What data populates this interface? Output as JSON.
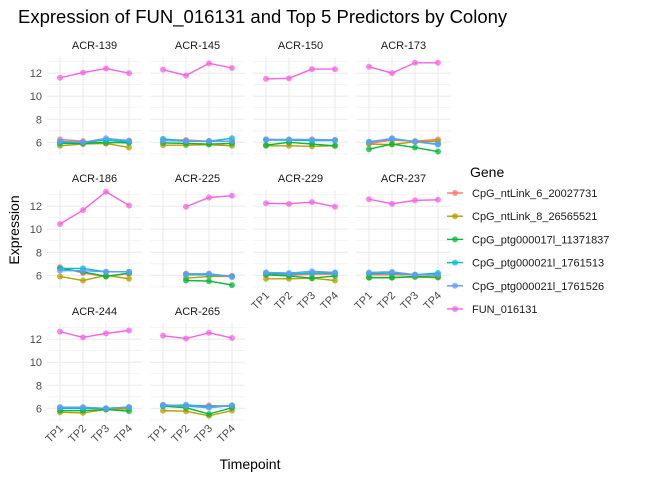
{
  "chart_data": {
    "type": "line",
    "title": "Expression of FUN_016131 and Top 5 Predictors by Colony",
    "xlabel": "Timepoint",
    "ylabel": "Expression",
    "x": [
      "TP1",
      "TP2",
      "TP3",
      "TP4"
    ],
    "ylim": [
      4.9,
      13.4
    ],
    "yticks": [
      6,
      8,
      10,
      12
    ],
    "grid": true,
    "legend": {
      "title": "Gene",
      "position": "right"
    },
    "series_meta": [
      {
        "name": "CpG_ntLink_6_20027731",
        "color": "#F8766D"
      },
      {
        "name": "CpG_ntLink_8_26565521",
        "color": "#B79F00"
      },
      {
        "name": "CpG_ptg000017l_11371837",
        "color": "#00BA38"
      },
      {
        "name": "CpG_ptg000021l_1761513",
        "color": "#00BFC4"
      },
      {
        "name": "CpG_ptg000021l_1761526",
        "color": "#619CFF"
      },
      {
        "name": "FUN_016131",
        "color": "#F564E3"
      }
    ],
    "facets": [
      {
        "label": "ACR-139",
        "values": [
          [
            6.25,
            6.1,
            5.9,
            6.1
          ],
          [
            5.7,
            5.85,
            5.9,
            5.55
          ],
          [
            5.9,
            5.9,
            6.0,
            5.95
          ],
          [
            6.0,
            6.0,
            6.2,
            6.05
          ],
          [
            6.1,
            6.0,
            6.35,
            6.15
          ],
          [
            11.6,
            12.05,
            12.4,
            12.0
          ]
        ]
      },
      {
        "label": "ACR-145",
        "values": [
          [
            6.2,
            6.2,
            6.1,
            6.1
          ],
          [
            5.75,
            5.75,
            5.8,
            5.7
          ],
          [
            5.95,
            5.9,
            5.85,
            5.9
          ],
          [
            6.3,
            6.1,
            6.1,
            6.35
          ],
          [
            6.15,
            6.1,
            6.1,
            6.1
          ],
          [
            12.3,
            11.8,
            12.85,
            12.45
          ]
        ]
      },
      {
        "label": "ACR-150",
        "values": [
          [
            6.25,
            6.2,
            6.2,
            6.2
          ],
          [
            5.7,
            5.7,
            5.65,
            5.7
          ],
          [
            5.75,
            6.0,
            5.85,
            5.7
          ],
          [
            6.2,
            6.2,
            6.15,
            6.15
          ],
          [
            6.25,
            6.25,
            6.25,
            6.2
          ],
          [
            11.5,
            11.55,
            12.35,
            12.35
          ]
        ]
      },
      {
        "label": "ACR-173",
        "values": [
          [
            5.9,
            6.2,
            6.1,
            6.25
          ],
          [
            5.85,
            5.8,
            6.05,
            6.1
          ],
          [
            5.4,
            5.85,
            5.55,
            5.2
          ],
          [
            6.05,
            6.3,
            6.05,
            5.85
          ],
          [
            6.0,
            6.35,
            6.05,
            5.8
          ],
          [
            12.55,
            12.0,
            12.9,
            12.9
          ]
        ]
      },
      {
        "label": "ACR-186",
        "values": [
          [
            6.7,
            6.2,
            5.9,
            6.15
          ],
          [
            5.9,
            5.55,
            6.0,
            5.7
          ],
          [
            6.6,
            6.3,
            5.9,
            6.2
          ],
          [
            6.6,
            6.6,
            6.3,
            6.3
          ],
          [
            6.4,
            6.4,
            6.3,
            6.3
          ],
          [
            10.45,
            11.65,
            13.25,
            12.05
          ]
        ]
      },
      {
        "label": "ACR-225",
        "values": [
          [
            null,
            6.15,
            6.1,
            5.95
          ],
          [
            null,
            5.75,
            5.9,
            5.9
          ],
          [
            null,
            5.55,
            5.5,
            5.15
          ],
          [
            null,
            6.05,
            6.05,
            5.9
          ],
          [
            null,
            6.1,
            6.15,
            5.85
          ],
          [
            null,
            11.95,
            12.75,
            12.9
          ]
        ]
      },
      {
        "label": "ACR-229",
        "values": [
          [
            6.1,
            6.0,
            6.1,
            6.1
          ],
          [
            5.7,
            5.7,
            5.75,
            5.55
          ],
          [
            6.05,
            5.95,
            5.75,
            5.95
          ],
          [
            6.2,
            6.1,
            6.2,
            6.2
          ],
          [
            6.25,
            6.2,
            6.35,
            6.25
          ],
          [
            12.25,
            12.2,
            12.35,
            11.95
          ]
        ]
      },
      {
        "label": "ACR-237",
        "values": [
          [
            6.05,
            6.05,
            6.05,
            6.0
          ],
          [
            5.8,
            5.8,
            5.85,
            5.8
          ],
          [
            5.8,
            5.8,
            5.9,
            5.85
          ],
          [
            6.15,
            6.2,
            6.05,
            6.2
          ],
          [
            6.25,
            6.3,
            6.05,
            6.05
          ],
          [
            12.6,
            12.2,
            12.5,
            12.55
          ]
        ]
      },
      {
        "label": "ACR-244",
        "values": [
          [
            6.05,
            6.05,
            6.0,
            6.05
          ],
          [
            5.65,
            5.6,
            5.9,
            5.95
          ],
          [
            5.8,
            5.8,
            5.9,
            5.75
          ],
          [
            6.0,
            6.0,
            6.0,
            6.1
          ],
          [
            6.1,
            6.1,
            6.0,
            6.1
          ],
          [
            12.65,
            12.15,
            12.5,
            12.75
          ]
        ]
      },
      {
        "label": "ACR-265",
        "values": [
          [
            6.3,
            6.2,
            6.25,
            6.15
          ],
          [
            5.8,
            5.75,
            5.35,
            5.8
          ],
          [
            6.2,
            6.05,
            5.5,
            6.05
          ],
          [
            6.2,
            6.3,
            6.15,
            6.25
          ],
          [
            6.3,
            6.2,
            6.05,
            6.25
          ],
          [
            12.3,
            12.05,
            12.55,
            12.1
          ]
        ]
      }
    ]
  }
}
